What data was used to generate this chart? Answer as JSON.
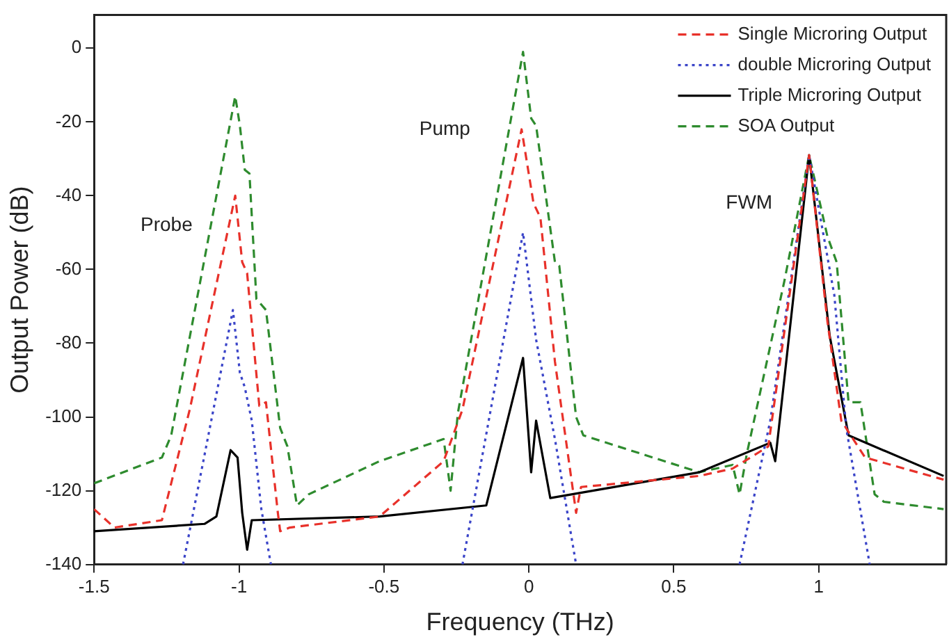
{
  "chart_data": {
    "type": "line",
    "xlabel": "Frequency (THz)",
    "ylabel": "Output Power (dB)",
    "xlim": [
      -1.5,
      1.44
    ],
    "xticks": [
      -1.5,
      -1,
      -0.5,
      0,
      0.5,
      1
    ],
    "ylim": [
      -140,
      9
    ],
    "yticks": [
      -140,
      -120,
      -100,
      -80,
      -60,
      -40,
      -20,
      0
    ],
    "grid": false,
    "legend": "top right",
    "marker": "none",
    "annotations": [
      "Probe",
      "Pump",
      "FWM"
    ],
    "series": [
      {
        "name": "Single Microring Output",
        "color": "#e8312a",
        "line_style": "dashed",
        "x": [
          -1.5,
          -1.43,
          -1.266,
          -1.17,
          -1.013,
          -0.989,
          -0.972,
          -0.93,
          -0.907,
          -0.866,
          -0.858,
          -0.825,
          -0.515,
          -0.294,
          -0.229,
          -0.025,
          0.016,
          0.04,
          0.09,
          0.147,
          0.163,
          0.18,
          0.588,
          0.703,
          0.826,
          0.967,
          1.03,
          1.078,
          1.16,
          1.431
        ],
        "values": [
          -125,
          -130,
          -128,
          -98,
          -40,
          -58,
          -61,
          -97,
          -96,
          -126,
          -131,
          -130,
          -127,
          -112,
          -98,
          -22,
          -42,
          -46,
          -85,
          -117,
          -126,
          -119,
          -116,
          -114,
          -108,
          -29,
          -74,
          -101,
          -111,
          -117
        ]
      },
      {
        "name": "double Microring Output",
        "color": "#3a44c8",
        "line_style": "dotted",
        "x": [
          -1.193,
          -1.021,
          -0.997,
          -0.98,
          -0.956,
          -0.923,
          -0.89,
          null,
          -0.229,
          -0.02,
          0.008,
          0.025,
          0.09,
          0.163,
          null,
          0.727,
          0.833,
          0.967,
          1.054,
          1.095,
          1.176
        ],
        "values": [
          -140,
          -71,
          -88,
          -92,
          -101,
          -125,
          -140,
          null,
          -140,
          -50,
          -68,
          -79,
          -106,
          -140,
          null,
          -140,
          -101,
          -29,
          -67,
          -103,
          -140
        ]
      },
      {
        "name": "Triple Microring Output",
        "color": "#000000",
        "line_style": "solid",
        "x": [
          -1.5,
          -1.119,
          -1.078,
          -1.029,
          -1.005,
          -0.989,
          -0.972,
          -0.956,
          -0.515,
          -0.147,
          -0.02,
          0.008,
          0.025,
          0.074,
          0.588,
          0.833,
          0.85,
          0.967,
          1.038,
          1.103,
          1.431
        ],
        "values": [
          -131,
          -129,
          -127,
          -109,
          -111,
          -126,
          -136,
          -128,
          -127,
          -124,
          -84,
          -115,
          -101,
          -122,
          -115,
          -107,
          -112,
          -29,
          -78,
          -105,
          -116
        ]
      },
      {
        "name": "SOA Output",
        "color": "#2e8b2e",
        "line_style": "dashed",
        "x": [
          -1.5,
          -1.266,
          -1.234,
          -1.013,
          -0.997,
          -0.98,
          -0.964,
          -0.94,
          -0.907,
          -0.858,
          -0.833,
          -0.8,
          -0.76,
          -0.515,
          -0.294,
          -0.27,
          -0.245,
          -0.02,
          0.008,
          0.025,
          0.09,
          0.105,
          0.163,
          0.188,
          0.588,
          0.703,
          0.727,
          0.752,
          0.882,
          0.967,
          1.03,
          1.062,
          1.103,
          1.144,
          1.193,
          1.225,
          1.431
        ],
        "values": [
          -118,
          -111,
          -105,
          -13,
          -21,
          -33,
          -34,
          -68,
          -71,
          -103,
          -108,
          -124,
          -121,
          -112,
          -106,
          -120,
          -99,
          -1,
          -19,
          -21,
          -58,
          -59,
          -100,
          -105,
          -115,
          -113,
          -121,
          -110,
          -63,
          -29,
          -51,
          -58,
          -96,
          -96,
          -121,
          -123,
          -125
        ]
      }
    ]
  }
}
